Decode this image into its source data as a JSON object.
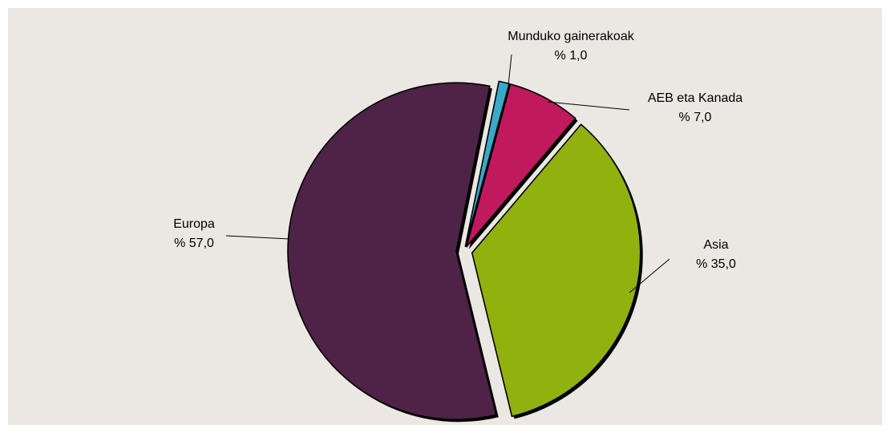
{
  "chart_data": {
    "type": "pie",
    "unit": "%",
    "slices": [
      {
        "name": "Munduko gainerakoak",
        "value": 1.0,
        "value_label": "% 1,0",
        "color": "#3aa9c9"
      },
      {
        "name": "AEB eta Kanada",
        "value": 7.0,
        "value_label": "% 7,0",
        "color": "#c0195e"
      },
      {
        "name": "Asia",
        "value": 35.0,
        "value_label": "% 35,0",
        "color": "#91b10f"
      },
      {
        "name": "Europa",
        "value": 57.0,
        "value_label": "% 57,0",
        "color": "#4f2247"
      }
    ],
    "background_color": "#ebe7e2",
    "legend": "none"
  }
}
